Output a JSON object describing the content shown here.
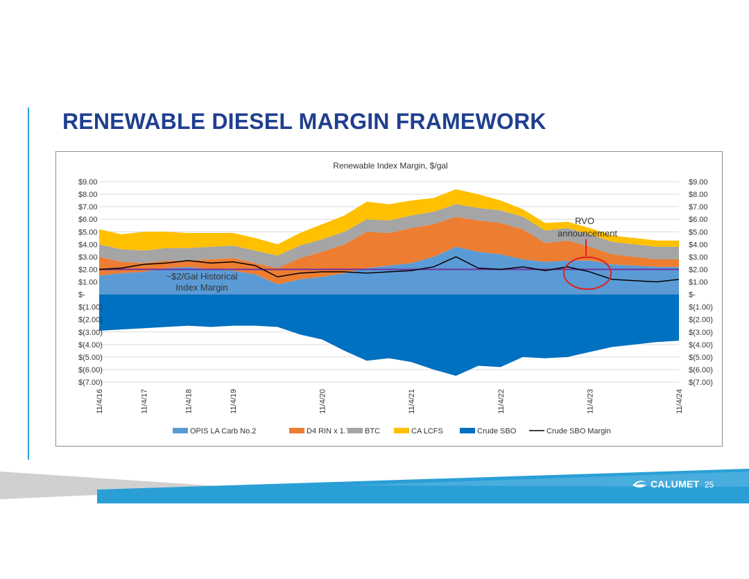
{
  "slide": {
    "title": "RENEWABLE DIESEL MARGIN FRAMEWORK",
    "page_number": "25",
    "logo_text": "CALUMET"
  },
  "colors": {
    "title": "#1f3f8f",
    "accent": "#2a9fd6",
    "opis": "#5b9bd5",
    "d4": "#ed7d31",
    "btc": "#a5a5a5",
    "lcfs": "#ffc000",
    "crude": "#0070c0",
    "margin": "#000000",
    "historical": "#7030a0",
    "rvo_circle": "#e02020"
  },
  "chart_data": {
    "type": "area",
    "title": "Renewable Index Margin, $/gal",
    "ylim": [
      -7,
      9
    ],
    "y_ticks": [
      9,
      8,
      7,
      6,
      5,
      4,
      3,
      2,
      1,
      0,
      -1,
      -2,
      -3,
      -4,
      -5,
      -6,
      -7
    ],
    "y_tick_labels": [
      "$9.00",
      "$8.00",
      "$7.00",
      "$6.00",
      "$5.00",
      "$4.00",
      "$3.00",
      "$2.00",
      "$1.00",
      "$-",
      "$(1.00)",
      "$(2.00)",
      "$(3.00)",
      "$(4.00)",
      "$(5.00)",
      "$(6.00)",
      "$(7.00)"
    ],
    "x_tick_labels": [
      "11/4/16",
      "11/4/17",
      "11/4/18",
      "11/4/19",
      "11/4/20",
      "11/4/21",
      "11/4/22",
      "11/4/23",
      "11/4/24"
    ],
    "grid": true,
    "legend_position": "bottom",
    "x": [
      "11/4/16",
      "5/4/17",
      "11/4/17",
      "5/4/18",
      "11/4/18",
      "5/4/19",
      "11/4/19",
      "2/4/20",
      "5/4/20",
      "8/4/20",
      "11/4/20",
      "2/4/21",
      "5/4/21",
      "8/4/21",
      "11/4/21",
      "2/4/22",
      "5/4/22",
      "8/4/22",
      "11/4/22",
      "2/4/23",
      "5/4/23",
      "8/4/23",
      "11/4/23",
      "2/4/24",
      "5/4/24",
      "8/4/24",
      "11/4/24"
    ],
    "series": [
      {
        "name": "OPIS LA Carb No.2",
        "kind": "stack",
        "values": [
          1.5,
          1.7,
          1.8,
          2.1,
          2.2,
          2.0,
          1.9,
          1.6,
          0.8,
          1.2,
          1.4,
          1.7,
          2.1,
          2.3,
          2.5,
          3.0,
          3.8,
          3.4,
          3.2,
          2.8,
          2.6,
          2.7,
          2.7,
          2.4,
          2.3,
          2.2,
          2.2
        ]
      },
      {
        "name": "D4 RIN x 1.7",
        "kind": "stack",
        "values": [
          1.5,
          0.9,
          0.7,
          0.6,
          0.5,
          0.8,
          1.0,
          0.9,
          1.3,
          1.7,
          2.0,
          2.3,
          2.9,
          2.6,
          2.8,
          2.6,
          2.4,
          2.5,
          2.5,
          2.4,
          1.5,
          1.6,
          1.1,
          0.8,
          0.7,
          0.6,
          0.6
        ]
      },
      {
        "name": "BTC",
        "kind": "stack",
        "values": [
          1.0,
          1.0,
          1.0,
          1.0,
          1.0,
          1.0,
          1.0,
          1.0,
          1.0,
          1.0,
          1.0,
          1.0,
          1.0,
          1.0,
          1.0,
          1.0,
          1.0,
          1.0,
          1.0,
          1.0,
          1.0,
          1.0,
          1.0,
          1.0,
          1.0,
          1.0,
          1.0
        ]
      },
      {
        "name": "CA LCFS",
        "kind": "stack",
        "values": [
          1.2,
          1.2,
          1.5,
          1.3,
          1.2,
          1.1,
          1.0,
          1.0,
          0.9,
          1.0,
          1.2,
          1.3,
          1.4,
          1.3,
          1.2,
          1.1,
          1.2,
          1.1,
          0.8,
          0.6,
          0.6,
          0.5,
          0.5,
          0.5,
          0.5,
          0.5,
          0.5
        ]
      },
      {
        "name": "Crude SBO",
        "kind": "negative",
        "values": [
          -2.9,
          -2.8,
          -2.7,
          -2.6,
          -2.5,
          -2.6,
          -2.5,
          -2.5,
          -2.6,
          -3.2,
          -3.6,
          -4.5,
          -5.3,
          -5.1,
          -5.4,
          -6.0,
          -6.5,
          -5.7,
          -5.8,
          -5.0,
          -5.1,
          -5.0,
          -4.6,
          -4.2,
          -4.0,
          -3.8,
          -3.7
        ]
      },
      {
        "name": "Crude SBO Margin",
        "kind": "line",
        "values": [
          2.0,
          2.1,
          2.4,
          2.5,
          2.7,
          2.5,
          2.6,
          2.3,
          1.4,
          1.7,
          1.8,
          1.8,
          1.7,
          1.8,
          1.9,
          2.2,
          3.0,
          2.1,
          2.0,
          2.2,
          1.9,
          2.2,
          1.8,
          1.2,
          1.1,
          1.0,
          1.2
        ]
      }
    ],
    "reference_line": {
      "value": 2.0,
      "label": "~$2/Gal Historical Index Margin"
    },
    "annotations": [
      {
        "text": "~$2/Gal Historical",
        "text2": "Index Margin",
        "x": "11/4/17"
      },
      {
        "text": "RVO",
        "text2": "announcement",
        "x": "5/4/23"
      }
    ]
  }
}
